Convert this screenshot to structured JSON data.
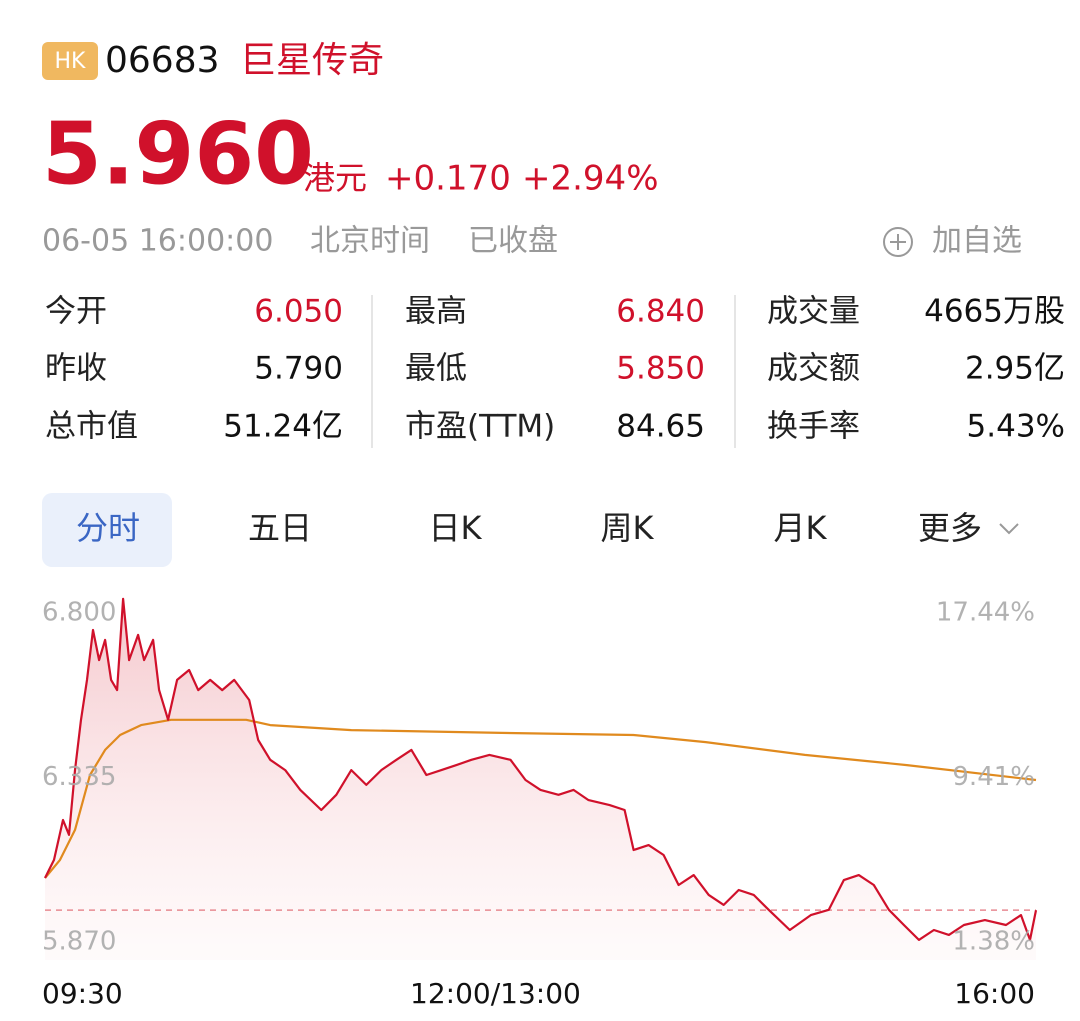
{
  "header": {
    "badge": "HK",
    "code": "06683",
    "name": "巨星传奇"
  },
  "quote": {
    "price": "5.960",
    "currency": "港元",
    "change": "+0.170",
    "change_pct": "+2.94%"
  },
  "status": {
    "datetime": "06-05 16:00:00",
    "timezone": "北京时间",
    "state": "已收盘",
    "watch": "加自选"
  },
  "stats": [
    {
      "label": "今开",
      "value": "6.050",
      "color": "#d0112b"
    },
    {
      "label": "最高",
      "value": "6.840",
      "color": "#d0112b"
    },
    {
      "label": "成交量",
      "value": "4665万股",
      "color": "#111111"
    },
    {
      "label": "昨收",
      "value": "5.790",
      "color": "#111111"
    },
    {
      "label": "最低",
      "value": "5.850",
      "color": "#d0112b"
    },
    {
      "label": "成交额",
      "value": "2.95亿",
      "color": "#111111"
    },
    {
      "label": "总市值",
      "value": "51.24亿",
      "color": "#111111"
    },
    {
      "label": "市盈(TTM)",
      "value": "84.65",
      "color": "#111111"
    },
    {
      "label": "换手率",
      "value": "5.43%",
      "color": "#111111"
    }
  ],
  "tabs": [
    "分时",
    "五日",
    "日K",
    "周K",
    "月K",
    "更多"
  ],
  "chart_data": {
    "type": "line",
    "xlim": [
      0,
      330
    ],
    "xticks": [
      {
        "value": 0,
        "label": "09:30"
      },
      {
        "value": 150,
        "label": "12:00/13:00"
      },
      {
        "value": 330,
        "label": "16:00"
      }
    ],
    "ylim": [
      5.87,
      6.8
    ],
    "yticks": [
      {
        "value": 6.8,
        "label": "6.800"
      },
      {
        "value": 6.335,
        "label": "6.335"
      },
      {
        "value": 5.87,
        "label": "5.870"
      }
    ],
    "y2lim": [
      1.38,
      17.44
    ],
    "y2ticks": [
      {
        "value": 17.44,
        "label": "17.44%"
      },
      {
        "value": 9.41,
        "label": "9.41%"
      },
      {
        "value": 1.38,
        "label": "1.38%"
      }
    ],
    "reference_line": 5.96,
    "series": [
      {
        "color": "#d0112b",
        "x": [
          0,
          3,
          6,
          8,
          10,
          12,
          14,
          16,
          18,
          20,
          22,
          24,
          26,
          28,
          31,
          33,
          36,
          38,
          41,
          44,
          48,
          51,
          55,
          59,
          63,
          68,
          71,
          75,
          80,
          85,
          92,
          97,
          102,
          107,
          112,
          117,
          122,
          127,
          132,
          137,
          142,
          148,
          155,
          160,
          165,
          171,
          176,
          181,
          188,
          193,
          196,
          201,
          206,
          211,
          216,
          221,
          226,
          231,
          236,
          241,
          248,
          255,
          261,
          266,
          271,
          276,
          281,
          286,
          291,
          296,
          301,
          306,
          313,
          320,
          325,
          328,
          330
        ],
        "values": [
          6.051,
          6.102,
          6.215,
          6.173,
          6.356,
          6.498,
          6.611,
          6.752,
          6.667,
          6.724,
          6.611,
          6.582,
          6.84,
          6.667,
          6.738,
          6.667,
          6.724,
          6.582,
          6.498,
          6.611,
          6.639,
          6.582,
          6.611,
          6.582,
          6.611,
          6.554,
          6.441,
          6.385,
          6.356,
          6.3,
          6.243,
          6.286,
          6.356,
          6.314,
          6.356,
          6.385,
          6.413,
          6.342,
          6.356,
          6.37,
          6.385,
          6.399,
          6.385,
          6.328,
          6.3,
          6.286,
          6.3,
          6.271,
          6.257,
          6.243,
          6.13,
          6.144,
          6.116,
          6.031,
          6.059,
          6.003,
          5.975,
          6.017,
          6.003,
          5.961,
          5.904,
          5.946,
          5.961,
          6.045,
          6.059,
          6.031,
          5.961,
          5.918,
          5.876,
          5.904,
          5.89,
          5.918,
          5.932,
          5.918,
          5.946,
          5.876,
          5.96
        ]
      },
      {
        "color": "#e08a1e",
        "x": [
          0,
          5,
          10,
          15,
          20,
          25,
          32,
          42,
          67,
          75,
          102,
          152,
          196,
          220,
          253,
          287,
          330
        ],
        "values": [
          6.051,
          6.102,
          6.187,
          6.342,
          6.413,
          6.455,
          6.483,
          6.498,
          6.498,
          6.483,
          6.469,
          6.461,
          6.455,
          6.435,
          6.399,
          6.37,
          6.328
        ]
      }
    ]
  }
}
